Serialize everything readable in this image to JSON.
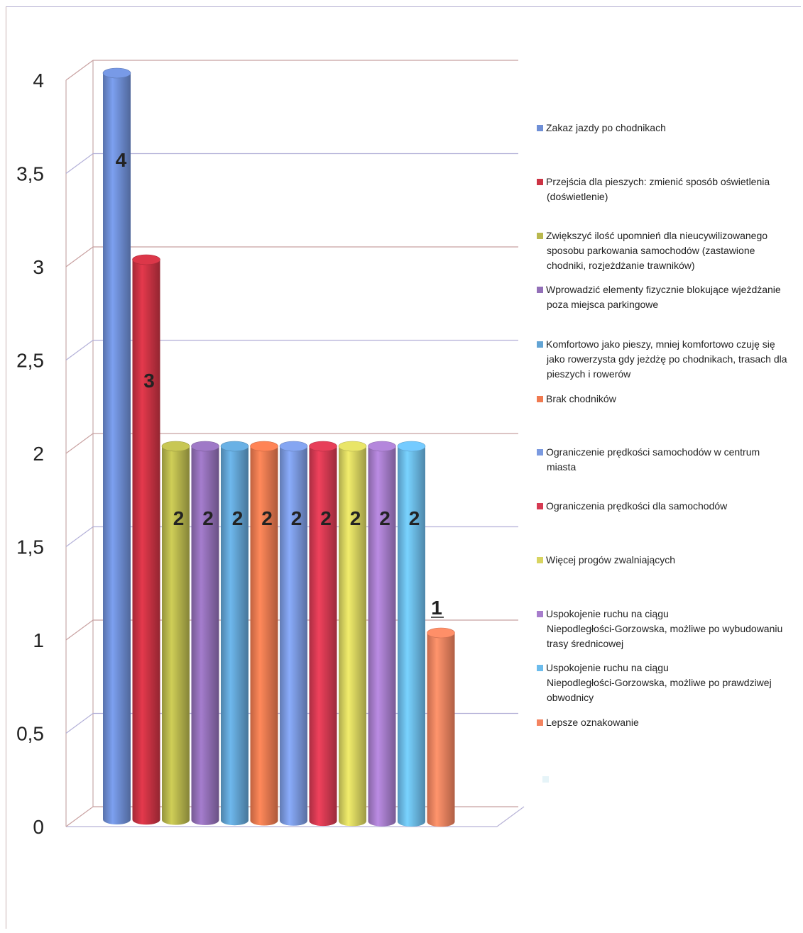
{
  "chart_data": {
    "type": "bar",
    "style": "3d-cylinder",
    "ylim": [
      0,
      4
    ],
    "y_ticks": [
      "0",
      "0,5",
      "1",
      "1,5",
      "2",
      "2,5",
      "3",
      "3,5",
      "4"
    ],
    "gridlines": true,
    "legend_position": "right",
    "series": [
      {
        "name": "Zakaz jazdy po chodnikach",
        "value": 4,
        "label": "4",
        "color": "#6f8fd6"
      },
      {
        "name": "Przejścia dla pieszych: zmienić sposób oświetlenia (doświetlenie)",
        "value": 3,
        "label": "3",
        "color": "#cc3344"
      },
      {
        "name": "Zwiększyć ilość upomnień dla nieucywilizowanego sposobu parkowania samochodów (zastawione chodniki, rozjeżdżanie trawników)",
        "value": 2,
        "label": "2",
        "color": "#b9b84e"
      },
      {
        "name": "Wprowadzić elementy fizycznie blokujące wjeżdżanie poza miejsca parkingowe",
        "value": 2,
        "label": "2",
        "color": "#9370b8"
      },
      {
        "name": "Komfortowo jako pieszy, mniej komfortowo czuję się jako rowerzysta gdy jeżdżę po chodnikach, trasach dla pieszych i rowerów",
        "value": 2,
        "label": "2",
        "color": "#62a4d4"
      },
      {
        "name": "Brak chodników",
        "value": 2,
        "label": "2",
        "color": "#f07a50"
      },
      {
        "name": "Ograniczenie prędkości samochodów w centrum miasta",
        "value": 2,
        "label": "2",
        "color": "#7b9ae0"
      },
      {
        "name": "Ograniczenia prędkości dla samochodów",
        "value": 2,
        "label": "2",
        "color": "#d63a52"
      },
      {
        "name": "Więcej progów zwalniających",
        "value": 2,
        "label": "2",
        "color": "#d8d460"
      },
      {
        "name": "Uspokojenie ruchu na ciągu Niepodległości-Gorzowska, możliwe po wybudowaniu trasy średnicowej",
        "value": 2,
        "label": "2",
        "color": "#a77dcc"
      },
      {
        "name": "Uspokojenie ruchu na ciągu Niepodległości-Gorzowska, możliwe po prawdziwej obwodnicy",
        "value": 2,
        "label": "2",
        "color": "#6cbcec"
      },
      {
        "name": "Lepsze oznakowanie",
        "value": 1,
        "label": "1",
        "color": "#f48460"
      }
    ],
    "legend_extra_swatch_color": "#e6f4f8"
  }
}
